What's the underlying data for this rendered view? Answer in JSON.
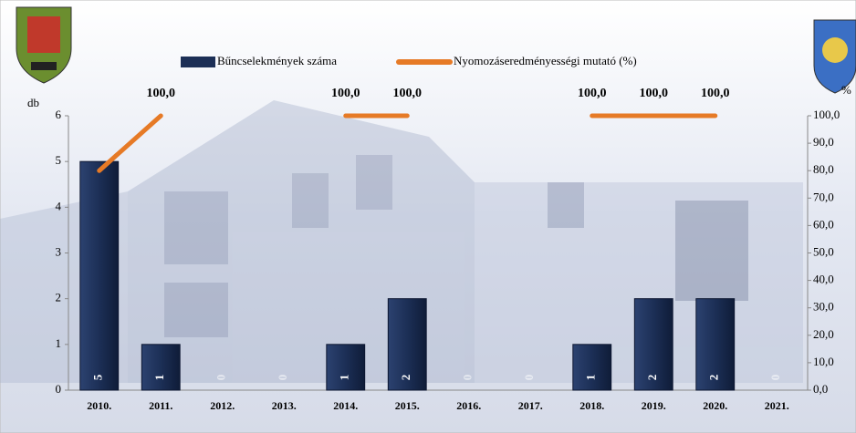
{
  "chart_data": {
    "type": "bar-line",
    "categories": [
      "2010.",
      "2011.",
      "2012.",
      "2013.",
      "2014.",
      "2015.",
      "2016.",
      "2017.",
      "2018.",
      "2019.",
      "2020.",
      "2021."
    ],
    "series": [
      {
        "name": "Bűncselekmények száma",
        "type": "bar",
        "color": "#1c2f56",
        "values": [
          5,
          1,
          0,
          0,
          1,
          2,
          0,
          0,
          1,
          2,
          2,
          0
        ]
      },
      {
        "name": "Nyomozáseredményességi mutató (%)",
        "type": "line",
        "axis": "y2",
        "color": "#e67a26",
        "values": [
          80,
          100,
          null,
          null,
          100,
          100,
          null,
          null,
          100,
          100,
          100,
          null
        ],
        "value_labels": [
          null,
          "100,0",
          null,
          null,
          "100,0",
          "100,0",
          null,
          null,
          "100,0",
          "100,0",
          "100,0",
          null
        ]
      }
    ],
    "ylabel": "db",
    "y2label": "%",
    "ylim": [
      0,
      6
    ],
    "yticks": [
      0,
      1,
      2,
      3,
      4,
      5,
      6
    ],
    "y2lim": [
      0,
      100
    ],
    "y2ticks": [
      {
        "value": 0,
        "label": "0,0"
      },
      {
        "value": 10,
        "label": "10,0"
      },
      {
        "value": 20,
        "label": "20,0"
      },
      {
        "value": 30,
        "label": "30,0"
      },
      {
        "value": 40,
        "label": "40,0"
      },
      {
        "value": 50,
        "label": "50,0"
      },
      {
        "value": 60,
        "label": "60,0"
      },
      {
        "value": 70,
        "label": "70,0"
      },
      {
        "value": 80,
        "label": "80,0"
      },
      {
        "value": 90,
        "label": "90,0"
      },
      {
        "value": 100,
        "label": "100,0"
      }
    ]
  }
}
